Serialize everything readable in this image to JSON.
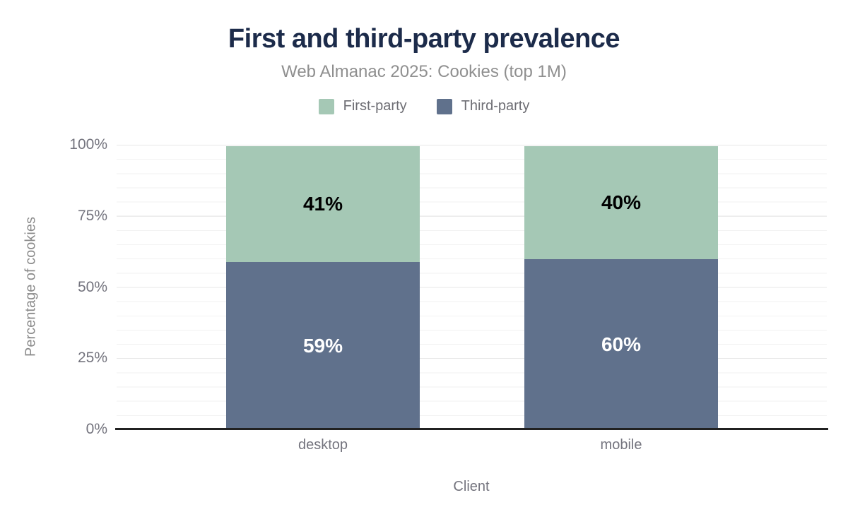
{
  "chart_data": {
    "type": "bar",
    "stacked": true,
    "title": "First and third-party prevalence",
    "subtitle": "Web Almanac 2025: Cookies (top 1M)",
    "xlabel": "Client",
    "ylabel": "Percentage of cookies",
    "categories": [
      "desktop",
      "mobile"
    ],
    "series": [
      {
        "name": "First-party",
        "color": "#a5c8b5",
        "values": [
          41,
          40
        ],
        "labels": [
          "41%",
          "40%"
        ],
        "label_color": "#000000",
        "stack_position": "top"
      },
      {
        "name": "Third-party",
        "color": "#60718c",
        "values": [
          59,
          60
        ],
        "labels": [
          "59%",
          "60%"
        ],
        "label_color": "#ffffff",
        "stack_position": "bottom"
      }
    ],
    "y_ticks": [
      "100%",
      "75%",
      "50%",
      "25%",
      "0%"
    ],
    "ylim": [
      0,
      100
    ],
    "grid": "horizontal, minor every 5%, major every 25%",
    "legend_position": "top"
  },
  "colors": {
    "title_text": "#1c2b4a",
    "first_party": "#a5c8b5",
    "third_party": "#60718c",
    "axis_line": "#212121",
    "muted_text": "#74747e"
  }
}
